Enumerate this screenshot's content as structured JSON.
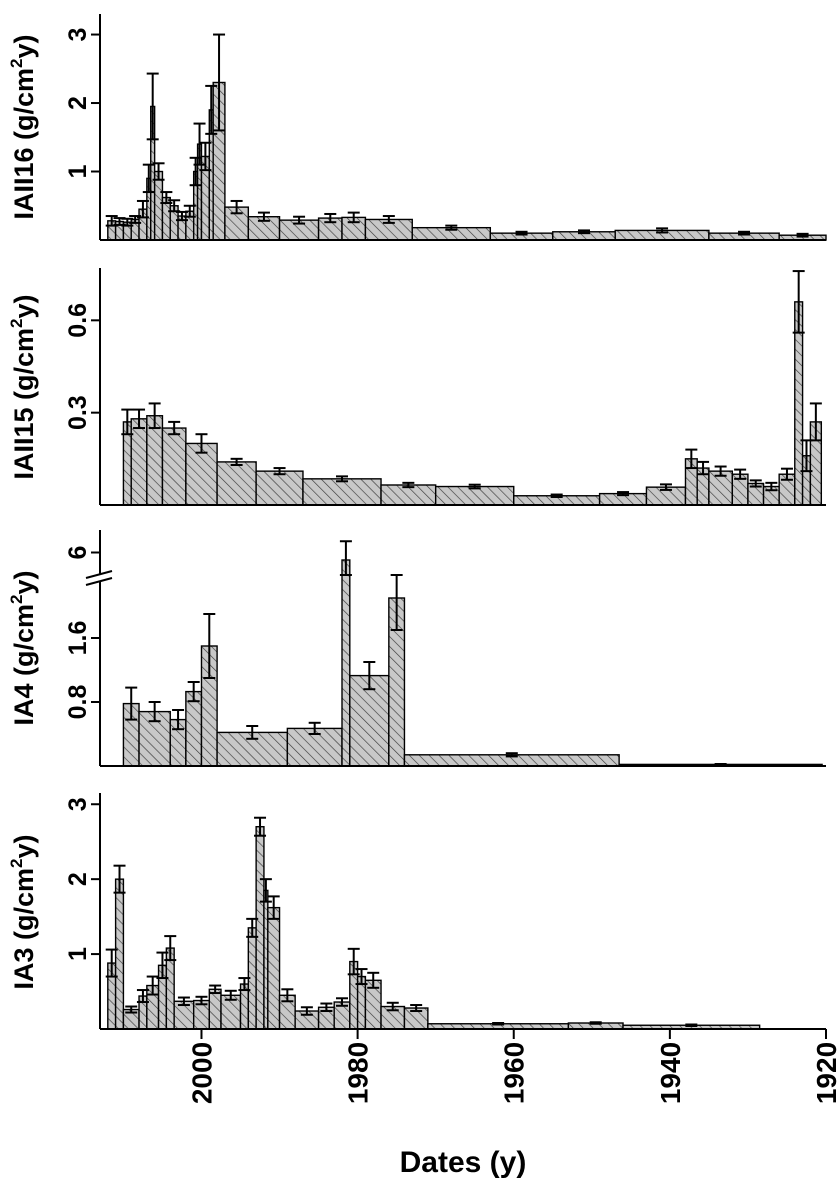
{
  "chart_data": [
    {
      "type": "bar",
      "panel": "IAII16",
      "ylabel": {
        "main": "IAII16 (g/cm",
        "sup": "2",
        "tail": "y)"
      },
      "yticks": [
        {
          "label": "1",
          "value": 1
        },
        {
          "label": "2",
          "value": 2
        },
        {
          "label": "3",
          "value": 3
        }
      ],
      "ylim": [
        0,
        3.3
      ],
      "xlim": [
        2013,
        1920
      ],
      "bars": [
        {
          "start": 2012,
          "end": 2011,
          "value": 0.28,
          "err": 0.07
        },
        {
          "start": 2011,
          "end": 2010,
          "value": 0.27,
          "err": 0.05
        },
        {
          "start": 2010,
          "end": 2009,
          "value": 0.26,
          "err": 0.05
        },
        {
          "start": 2009,
          "end": 2008,
          "value": 0.3,
          "err": 0.05
        },
        {
          "start": 2008,
          "end": 2007,
          "value": 0.45,
          "err": 0.12
        },
        {
          "start": 2007,
          "end": 2006.5,
          "value": 0.9,
          "err": 0.2
        },
        {
          "start": 2006.5,
          "end": 2006,
          "value": 1.95,
          "err": 0.48
        },
        {
          "start": 2006,
          "end": 2005,
          "value": 1.0,
          "err": 0.12
        },
        {
          "start": 2005,
          "end": 2004,
          "value": 0.62,
          "err": 0.08
        },
        {
          "start": 2004,
          "end": 2003,
          "value": 0.5,
          "err": 0.08
        },
        {
          "start": 2003,
          "end": 2002,
          "value": 0.35,
          "err": 0.06
        },
        {
          "start": 2002,
          "end": 2001,
          "value": 0.42,
          "err": 0.08
        },
        {
          "start": 2001,
          "end": 2000.5,
          "value": 1.0,
          "err": 0.2
        },
        {
          "start": 2000.5,
          "end": 2000,
          "value": 1.4,
          "err": 0.3
        },
        {
          "start": 2000,
          "end": 1999,
          "value": 1.22,
          "err": 0.2
        },
        {
          "start": 1999,
          "end": 1998.5,
          "value": 1.9,
          "err": 0.35
        },
        {
          "start": 1998.5,
          "end": 1997,
          "value": 2.3,
          "err": 0.7
        },
        {
          "start": 1997,
          "end": 1994,
          "value": 0.48,
          "err": 0.09
        },
        {
          "start": 1994,
          "end": 1990,
          "value": 0.34,
          "err": 0.06
        },
        {
          "start": 1990,
          "end": 1985,
          "value": 0.29,
          "err": 0.05
        },
        {
          "start": 1985,
          "end": 1982,
          "value": 0.32,
          "err": 0.06
        },
        {
          "start": 1982,
          "end": 1979,
          "value": 0.33,
          "err": 0.07
        },
        {
          "start": 1979,
          "end": 1973,
          "value": 0.3,
          "err": 0.05
        },
        {
          "start": 1973,
          "end": 1963,
          "value": 0.18,
          "err": 0.03
        },
        {
          "start": 1963,
          "end": 1955,
          "value": 0.1,
          "err": 0.02
        },
        {
          "start": 1955,
          "end": 1947,
          "value": 0.12,
          "err": 0.02
        },
        {
          "start": 1947,
          "end": 1935,
          "value": 0.14,
          "err": 0.03
        },
        {
          "start": 1935,
          "end": 1926,
          "value": 0.1,
          "err": 0.02
        },
        {
          "start": 1926,
          "end": 1920,
          "value": 0.07,
          "err": 0.02
        }
      ]
    },
    {
      "type": "bar",
      "panel": "IAII15",
      "ylabel": {
        "main": "IAII15 (g/cm",
        "sup": "2",
        "tail": "y)"
      },
      "yticks": [
        {
          "label": "0.3",
          "value": 0.3
        },
        {
          "label": "0.6",
          "value": 0.6
        }
      ],
      "ylim": [
        0,
        0.77
      ],
      "xlim": [
        2013,
        1920
      ],
      "bars": [
        {
          "start": 2010,
          "end": 2009,
          "value": 0.27,
          "err": 0.04
        },
        {
          "start": 2009,
          "end": 2007,
          "value": 0.28,
          "err": 0.03
        },
        {
          "start": 2007,
          "end": 2005,
          "value": 0.29,
          "err": 0.04
        },
        {
          "start": 2005,
          "end": 2002,
          "value": 0.25,
          "err": 0.02
        },
        {
          "start": 2002,
          "end": 1998,
          "value": 0.2,
          "err": 0.03
        },
        {
          "start": 1998,
          "end": 1993,
          "value": 0.14,
          "err": 0.01
        },
        {
          "start": 1993,
          "end": 1987,
          "value": 0.11,
          "err": 0.01
        },
        {
          "start": 1987,
          "end": 1977,
          "value": 0.085,
          "err": 0.008
        },
        {
          "start": 1977,
          "end": 1970,
          "value": 0.065,
          "err": 0.007
        },
        {
          "start": 1970,
          "end": 1960,
          "value": 0.06,
          "err": 0.006
        },
        {
          "start": 1960,
          "end": 1949,
          "value": 0.03,
          "err": 0.004
        },
        {
          "start": 1949,
          "end": 1943,
          "value": 0.037,
          "err": 0.005
        },
        {
          "start": 1943,
          "end": 1938,
          "value": 0.058,
          "err": 0.009
        },
        {
          "start": 1938,
          "end": 1936.5,
          "value": 0.15,
          "err": 0.03
        },
        {
          "start": 1936.5,
          "end": 1935,
          "value": 0.12,
          "err": 0.02
        },
        {
          "start": 1935,
          "end": 1932,
          "value": 0.11,
          "err": 0.015
        },
        {
          "start": 1932,
          "end": 1930,
          "value": 0.1,
          "err": 0.015
        },
        {
          "start": 1930,
          "end": 1928,
          "value": 0.07,
          "err": 0.01
        },
        {
          "start": 1928,
          "end": 1926,
          "value": 0.06,
          "err": 0.012
        },
        {
          "start": 1926,
          "end": 1924,
          "value": 0.1,
          "err": 0.018
        },
        {
          "start": 1924,
          "end": 1923,
          "value": 0.66,
          "err": 0.1
        },
        {
          "start": 1923,
          "end": 1922,
          "value": 0.16,
          "err": 0.05
        },
        {
          "start": 1922,
          "end": 1920.6,
          "value": 0.27,
          "err": 0.06
        }
      ]
    },
    {
      "type": "bar",
      "panel": "IA4",
      "ylabel": {
        "main": "IA4 (g/cm",
        "sup": "2",
        "tail": "y)"
      },
      "yticks": [
        {
          "label": "0.8",
          "value": 0.8
        },
        {
          "label": "1.6",
          "value": 1.6
        },
        {
          "label": "6",
          "value": 6,
          "broken": true
        }
      ],
      "axis_break": {
        "lower_max": 2.3,
        "upper_min": 5.4,
        "upper_max": 6.6
      },
      "xlim": [
        2013,
        1920
      ],
      "bars": [
        {
          "start": 2010,
          "end": 2008,
          "value": 0.78,
          "err": 0.2
        },
        {
          "start": 2008,
          "end": 2004,
          "value": 0.68,
          "err": 0.12
        },
        {
          "start": 2004,
          "end": 2002,
          "value": 0.58,
          "err": 0.12
        },
        {
          "start": 2002,
          "end": 2000,
          "value": 0.93,
          "err": 0.12
        },
        {
          "start": 2000,
          "end": 1998,
          "value": 1.5,
          "err": 0.4
        },
        {
          "start": 1998,
          "end": 1989,
          "value": 0.42,
          "err": 0.08
        },
        {
          "start": 1989,
          "end": 1982,
          "value": 0.47,
          "err": 0.07
        },
        {
          "start": 1982,
          "end": 1981,
          "value": 5.8,
          "err": 0.5
        },
        {
          "start": 1981,
          "end": 1976,
          "value": 1.13,
          "err": 0.17
        },
        {
          "start": 1976,
          "end": 1974,
          "value": 2.1,
          "err": 0.4
        },
        {
          "start": 1974,
          "end": 1946.5,
          "value": 0.14,
          "err": 0.02
        },
        {
          "start": 1946.5,
          "end": 1920.5,
          "value": 0.02,
          "err": 0.005
        }
      ]
    },
    {
      "type": "bar",
      "panel": "IA3",
      "ylabel": {
        "main": "IA3 (g/cm",
        "sup": "2",
        "tail": "y)"
      },
      "yticks": [
        {
          "label": "1",
          "value": 1
        },
        {
          "label": "2",
          "value": 2
        },
        {
          "label": "3",
          "value": 3
        }
      ],
      "ylim": [
        0,
        3.15
      ],
      "xlim": [
        2013,
        1920
      ],
      "xticks": [
        {
          "label": "2000",
          "value": 2000
        },
        {
          "label": "1980",
          "value": 1980
        },
        {
          "label": "1960",
          "value": 1960
        },
        {
          "label": "1940",
          "value": 1940
        },
        {
          "label": "1920",
          "value": 1920
        }
      ],
      "xlabel": "Dates (y)",
      "bars": [
        {
          "start": 2012,
          "end": 2011,
          "value": 0.88,
          "err": 0.18
        },
        {
          "start": 2011,
          "end": 2010,
          "value": 2.0,
          "err": 0.18
        },
        {
          "start": 2010,
          "end": 2008,
          "value": 0.26,
          "err": 0.04
        },
        {
          "start": 2008,
          "end": 2007,
          "value": 0.44,
          "err": 0.08
        },
        {
          "start": 2007,
          "end": 2005.5,
          "value": 0.58,
          "err": 0.12
        },
        {
          "start": 2005.5,
          "end": 2004.5,
          "value": 0.85,
          "err": 0.17
        },
        {
          "start": 2004.5,
          "end": 2003.5,
          "value": 1.08,
          "err": 0.16
        },
        {
          "start": 2003.5,
          "end": 2001,
          "value": 0.37,
          "err": 0.05
        },
        {
          "start": 2001,
          "end": 1999,
          "value": 0.38,
          "err": 0.05
        },
        {
          "start": 1999,
          "end": 1997.5,
          "value": 0.53,
          "err": 0.05
        },
        {
          "start": 1997.5,
          "end": 1995,
          "value": 0.45,
          "err": 0.06
        },
        {
          "start": 1995,
          "end": 1994,
          "value": 0.6,
          "err": 0.08
        },
        {
          "start": 1994,
          "end": 1993,
          "value": 1.35,
          "err": 0.12
        },
        {
          "start": 1993,
          "end": 1992,
          "value": 2.7,
          "err": 0.12
        },
        {
          "start": 1992,
          "end": 1991.5,
          "value": 1.85,
          "err": 0.15
        },
        {
          "start": 1991.5,
          "end": 1990,
          "value": 1.62,
          "err": 0.15
        },
        {
          "start": 1990,
          "end": 1988,
          "value": 0.45,
          "err": 0.08
        },
        {
          "start": 1988,
          "end": 1985,
          "value": 0.24,
          "err": 0.05
        },
        {
          "start": 1985,
          "end": 1983,
          "value": 0.29,
          "err": 0.05
        },
        {
          "start": 1983,
          "end": 1981,
          "value": 0.36,
          "err": 0.05
        },
        {
          "start": 1981,
          "end": 1980,
          "value": 0.9,
          "err": 0.17
        },
        {
          "start": 1980,
          "end": 1979,
          "value": 0.7,
          "err": 0.1
        },
        {
          "start": 1979,
          "end": 1977,
          "value": 0.65,
          "err": 0.1
        },
        {
          "start": 1977,
          "end": 1974,
          "value": 0.3,
          "err": 0.05
        },
        {
          "start": 1974,
          "end": 1971,
          "value": 0.28,
          "err": 0.04
        },
        {
          "start": 1971,
          "end": 1953,
          "value": 0.07,
          "err": 0.01
        },
        {
          "start": 1953,
          "end": 1946,
          "value": 0.08,
          "err": 0.01
        },
        {
          "start": 1946,
          "end": 1928.5,
          "value": 0.05,
          "err": 0.01
        }
      ]
    }
  ]
}
